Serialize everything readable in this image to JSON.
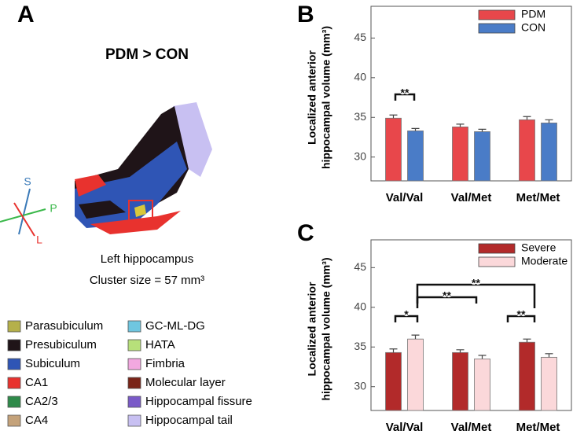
{
  "panel_a": {
    "panel_label": "A",
    "title": "PDM > CON",
    "axis_labels": [
      "S",
      "P",
      "L"
    ],
    "caption": "Left hippocampus",
    "cluster_size": "Cluster size = 57 mm³",
    "legend": [
      {
        "name": "Parasubiculum",
        "color": "#b5b04a"
      },
      {
        "name": "Presubiculum",
        "color": "#1f1418"
      },
      {
        "name": "Subiculum",
        "color": "#2f55b5"
      },
      {
        "name": "CA1",
        "color": "#e8322e"
      },
      {
        "name": "CA2/3",
        "color": "#2f8a4a"
      },
      {
        "name": "CA4",
        "color": "#c4a27a"
      },
      {
        "name": "GC-ML-DG",
        "color": "#6fc6e0"
      },
      {
        "name": "HATA",
        "color": "#b7e07a"
      },
      {
        "name": "Fimbria",
        "color": "#f2a8e0"
      },
      {
        "name": "Molecular layer",
        "color": "#7a2418"
      },
      {
        "name": "Hippocampal fissure",
        "color": "#7a5ac8"
      },
      {
        "name": "Hippocampal tail",
        "color": "#c8c0f2"
      }
    ]
  },
  "chart_data": [
    {
      "type": "bar",
      "panel_label": "B",
      "ylabel": [
        "Localized anterior",
        "hippocampal volume (mm³)"
      ],
      "categories": [
        "Val/Val",
        "Val/Met",
        "Met/Met"
      ],
      "series": [
        {
          "name": "PDM",
          "color": "#e8474b",
          "values": [
            34.9,
            33.8,
            34.7
          ],
          "errors": [
            0.4,
            0.35,
            0.4
          ]
        },
        {
          "name": "CON",
          "color": "#4a7cc7",
          "values": [
            33.3,
            33.2,
            34.3
          ],
          "errors": [
            0.3,
            0.3,
            0.4
          ]
        }
      ],
      "ylim": [
        27,
        49
      ],
      "yticks": [
        30,
        35,
        40,
        45
      ],
      "legend": "upper right",
      "annotations": [
        {
          "text": "**"
        }
      ]
    },
    {
      "type": "bar",
      "panel_label": "C",
      "ylabel": [
        "Localized anterior",
        "hippocampal volume (mm³)"
      ],
      "categories": [
        "Val/Val",
        "Val/Met",
        "Met/Met"
      ],
      "series": [
        {
          "name": "Severe",
          "color": "#b22a2a",
          "values": [
            34.3,
            34.3,
            35.6
          ],
          "errors": [
            0.45,
            0.35,
            0.4
          ]
        },
        {
          "name": "Moderate",
          "color": "#fbd8da",
          "values": [
            36.0,
            33.5,
            33.7
          ],
          "errors": [
            0.5,
            0.45,
            0.45
          ]
        }
      ],
      "ylim": [
        27,
        48.5
      ],
      "yticks": [
        30,
        35,
        40,
        45
      ],
      "legend": "upper right",
      "annotations": [
        {
          "text": "*"
        },
        {
          "text": "**"
        },
        {
          "text": "**"
        },
        {
          "text": "**"
        }
      ]
    }
  ]
}
